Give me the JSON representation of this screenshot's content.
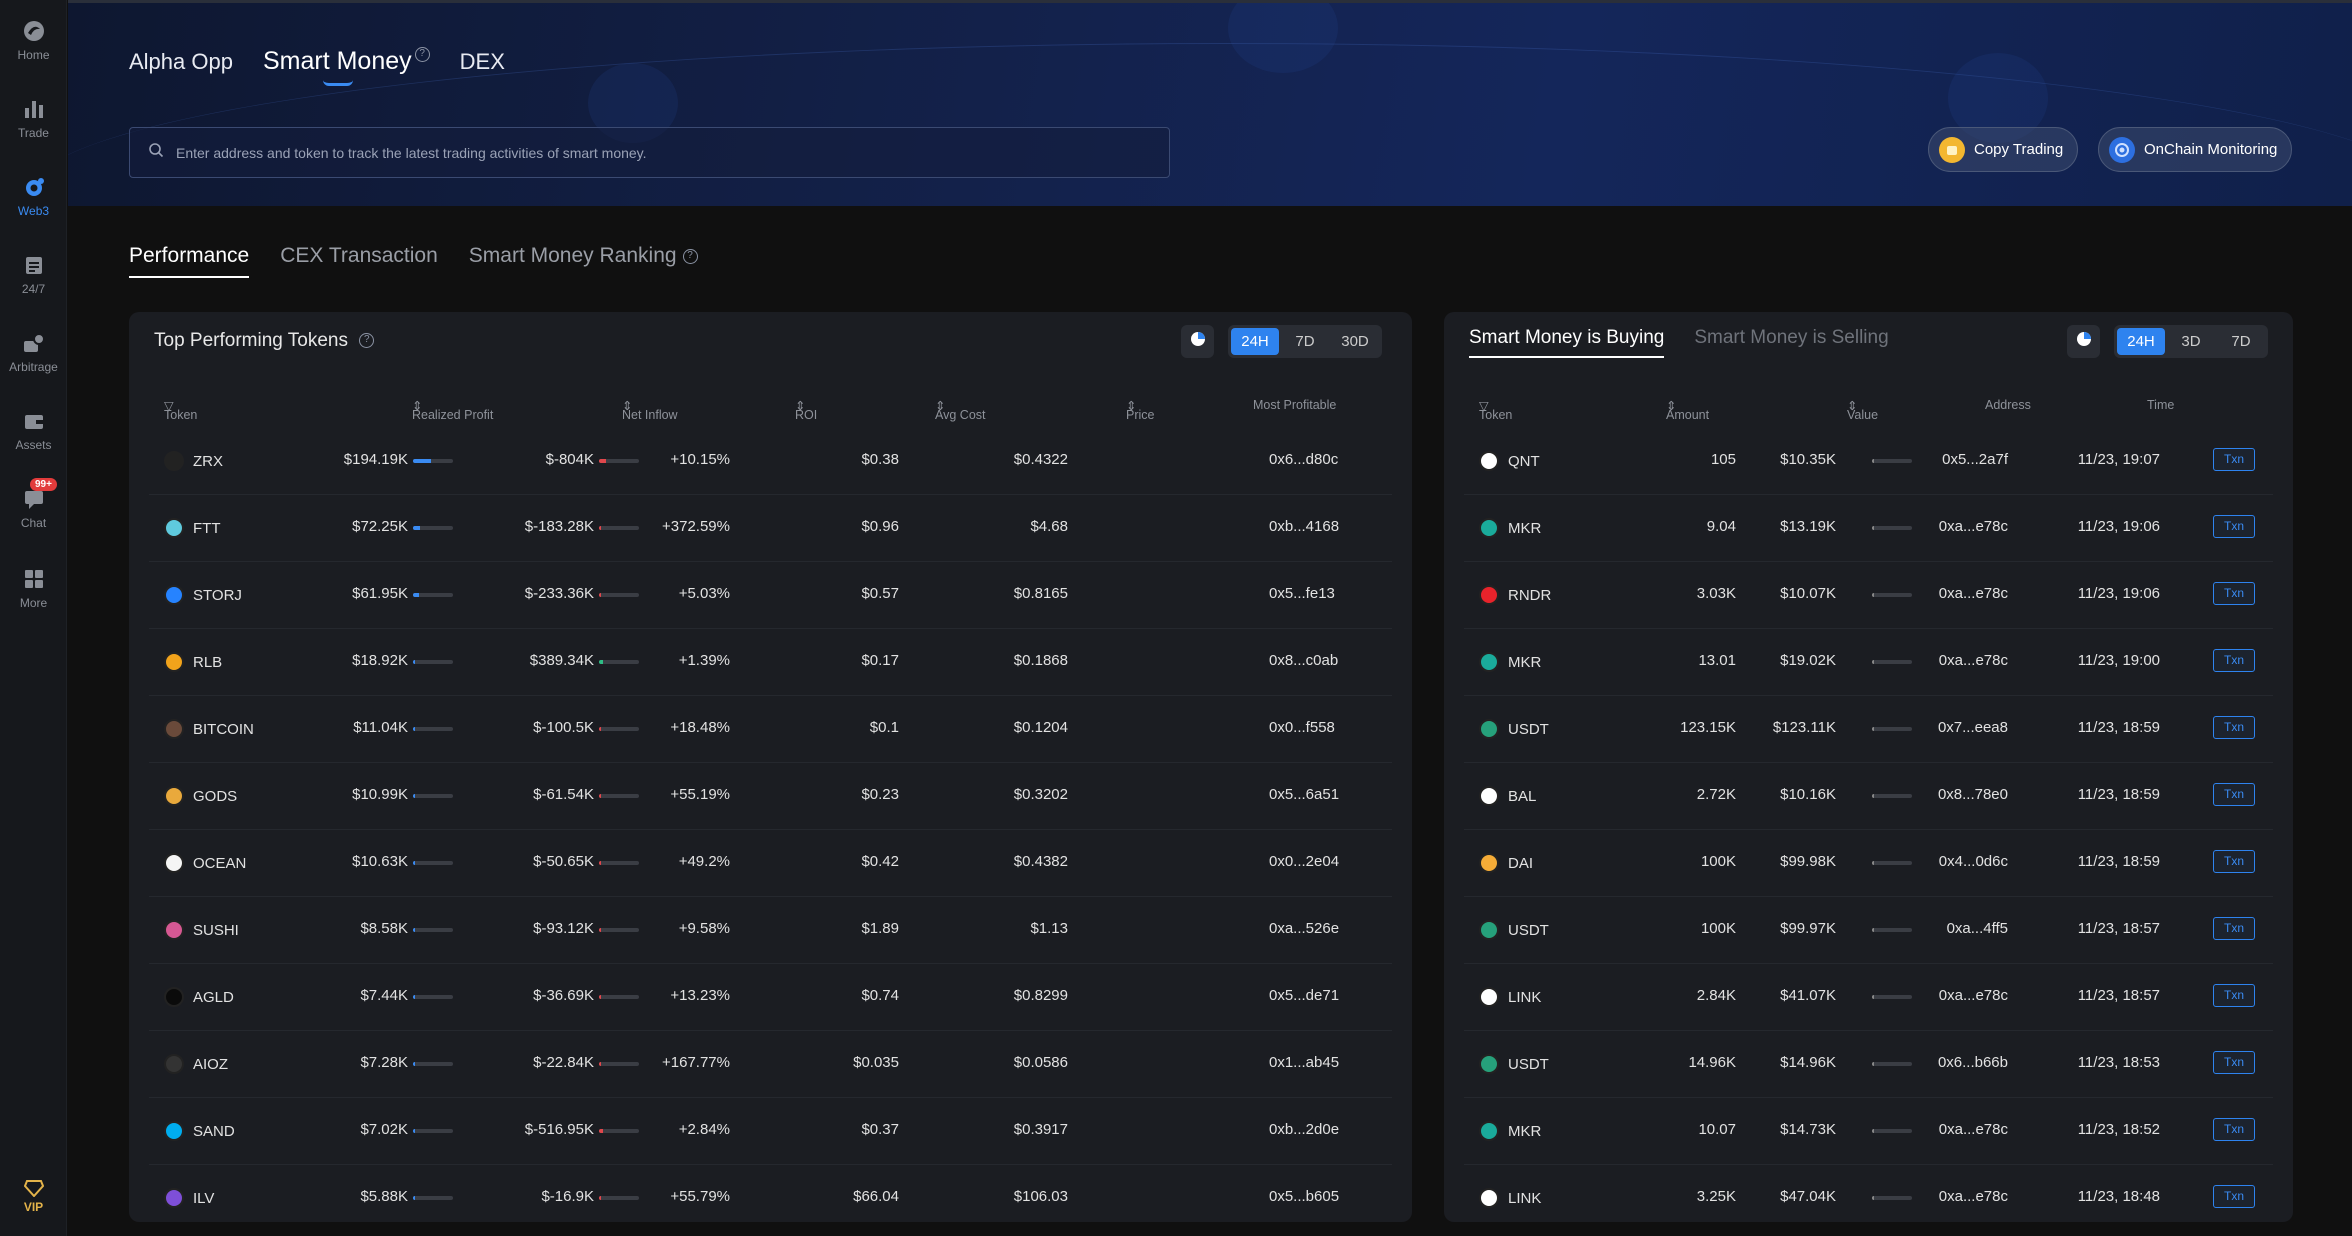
{
  "sidebar": {
    "items": [
      {
        "label": "Home",
        "icon": "home-icon",
        "active": false
      },
      {
        "label": "Trade",
        "icon": "trade-icon",
        "active": false
      },
      {
        "label": "Web3",
        "icon": "web3-icon",
        "active": true
      },
      {
        "label": "24/7",
        "icon": "calendar-icon",
        "active": false
      },
      {
        "label": "Arbitrage",
        "icon": "arbitrage-icon",
        "active": false
      },
      {
        "label": "Assets",
        "icon": "wallet-icon",
        "active": false
      },
      {
        "label": "Chat",
        "icon": "chat-icon",
        "active": false,
        "badge": "99+"
      },
      {
        "label": "More",
        "icon": "grid-icon",
        "active": false
      }
    ],
    "vip_label": "VIP"
  },
  "header": {
    "tabs": [
      {
        "label": "Alpha Opp",
        "active": false
      },
      {
        "label": "Smart Money",
        "active": true
      },
      {
        "label": "DEX",
        "active": false
      }
    ],
    "search_placeholder": "Enter address and token to track the latest trading activities of smart money.",
    "copy_trading_label": "Copy Trading",
    "onchain_monitoring_label": "OnChain Monitoring"
  },
  "section_tabs": [
    {
      "label": "Performance",
      "active": true
    },
    {
      "label": "CEX Transaction",
      "active": false
    },
    {
      "label": "Smart Money Ranking",
      "active": false
    }
  ],
  "left_panel": {
    "title": "Top Performing Tokens",
    "periods": [
      "24H",
      "7D",
      "30D"
    ],
    "active_period": "24H",
    "columns": {
      "token": "Token",
      "realized_profit": "Realized Profit",
      "net_inflow": "Net Inflow",
      "roi": "ROI",
      "avg_cost": "Avg Cost",
      "price": "Price",
      "most_profitable": "Most Profitable"
    },
    "rows": [
      {
        "token": "ZRX",
        "realized_profit": "$194.19K",
        "profit_level": 0.45,
        "net_inflow": "$-804K",
        "inflow_level": 0.06,
        "roi": "+10.15%",
        "avg_cost": "$0.38",
        "price": "$0.4322",
        "most_profitable": "0x6...d80c",
        "icon_color": "#222222"
      },
      {
        "token": "FTT",
        "realized_profit": "$72.25K",
        "profit_level": 0.17,
        "net_inflow": "$-183.28K",
        "inflow_level": 0.02,
        "roi": "+372.59%",
        "avg_cost": "$0.96",
        "price": "$4.68",
        "most_profitable": "0xb...4168",
        "icon_color": "#5fcade"
      },
      {
        "token": "STORJ",
        "realized_profit": "$61.95K",
        "profit_level": 0.15,
        "net_inflow": "$-233.36K",
        "inflow_level": 0.02,
        "roi": "+5.03%",
        "avg_cost": "$0.57",
        "price": "$0.8165",
        "most_profitable": "0x5...fe13",
        "icon_color": "#2683ff"
      },
      {
        "token": "RLB",
        "realized_profit": "$18.92K",
        "profit_level": 0.05,
        "net_inflow": "$389.34K",
        "inflow_level": 0.03,
        "roi": "+1.39%",
        "avg_cost": "$0.17",
        "price": "$0.1868",
        "most_profitable": "0x8...c0ab",
        "icon_color": "#f2a31b"
      },
      {
        "token": "BITCOIN",
        "realized_profit": "$11.04K",
        "profit_level": 0.03,
        "net_inflow": "$-100.5K",
        "inflow_level": 0.02,
        "roi": "+18.48%",
        "avg_cost": "$0.1",
        "price": "$0.1204",
        "most_profitable": "0x0...f558",
        "icon_color": "#6a4a3a"
      },
      {
        "token": "GODS",
        "realized_profit": "$10.99K",
        "profit_level": 0.03,
        "net_inflow": "$-61.54K",
        "inflow_level": 0.02,
        "roi": "+55.19%",
        "avg_cost": "$0.23",
        "price": "$0.3202",
        "most_profitable": "0x5...6a51",
        "icon_color": "#e9a93c"
      },
      {
        "token": "OCEAN",
        "realized_profit": "$10.63K",
        "profit_level": 0.03,
        "net_inflow": "$-50.65K",
        "inflow_level": 0.02,
        "roi": "+49.2%",
        "avg_cost": "$0.42",
        "price": "$0.4382",
        "most_profitable": "0x0...2e04",
        "icon_color": "#f5f5f5"
      },
      {
        "token": "SUSHI",
        "realized_profit": "$8.58K",
        "profit_level": 0.03,
        "net_inflow": "$-93.12K",
        "inflow_level": 0.02,
        "roi": "+9.58%",
        "avg_cost": "$1.89",
        "price": "$1.13",
        "most_profitable": "0xa...526e",
        "icon_color": "#d65892"
      },
      {
        "token": "AGLD",
        "realized_profit": "$7.44K",
        "profit_level": 0.02,
        "net_inflow": "$-36.69K",
        "inflow_level": 0.02,
        "roi": "+13.23%",
        "avg_cost": "$0.74",
        "price": "$0.8299",
        "most_profitable": "0x5...de71",
        "icon_color": "#0b0b0b"
      },
      {
        "token": "AIOZ",
        "realized_profit": "$7.28K",
        "profit_level": 0.02,
        "net_inflow": "$-22.84K",
        "inflow_level": 0.02,
        "roi": "+167.77%",
        "avg_cost": "$0.035",
        "price": "$0.0586",
        "most_profitable": "0x1...ab45",
        "icon_color": "#333333"
      },
      {
        "token": "SAND",
        "realized_profit": "$7.02K",
        "profit_level": 0.02,
        "net_inflow": "$-516.95K",
        "inflow_level": 0.03,
        "roi": "+2.84%",
        "avg_cost": "$0.37",
        "price": "$0.3917",
        "most_profitable": "0xb...2d0e",
        "icon_color": "#00adef"
      },
      {
        "token": "ILV",
        "realized_profit": "$5.88K",
        "profit_level": 0.02,
        "net_inflow": "$-16.9K",
        "inflow_level": 0.02,
        "roi": "+55.79%",
        "avg_cost": "$66.04",
        "price": "$106.03",
        "most_profitable": "0x5...b605",
        "icon_color": "#7e4fd8"
      }
    ]
  },
  "right_panel": {
    "tabs": [
      {
        "label": "Smart Money is Buying",
        "active": true
      },
      {
        "label": "Smart Money is Selling",
        "active": false
      }
    ],
    "periods": [
      "24H",
      "3D",
      "7D"
    ],
    "active_period": "24H",
    "columns": {
      "token": "Token",
      "amount": "Amount",
      "value": "Value",
      "address": "Address",
      "time": "Time"
    },
    "txn_label": "Txn",
    "rows": [
      {
        "token": "QNT",
        "amount": "105",
        "value": "$10.35K",
        "address": "0x5...2a7f",
        "time": "11/23, 19:07",
        "icon_color": "#ffffff"
      },
      {
        "token": "MKR",
        "amount": "9.04",
        "value": "$13.19K",
        "address": "0xa...e78c",
        "time": "11/23, 19:06",
        "icon_color": "#1aab9b"
      },
      {
        "token": "RNDR",
        "amount": "3.03K",
        "value": "$10.07K",
        "address": "0xa...e78c",
        "time": "11/23, 19:06",
        "icon_color": "#e8232b"
      },
      {
        "token": "MKR",
        "amount": "13.01",
        "value": "$19.02K",
        "address": "0xa...e78c",
        "time": "11/23, 19:00",
        "icon_color": "#1aab9b"
      },
      {
        "token": "USDT",
        "amount": "123.15K",
        "value": "$123.11K",
        "address": "0x7...eea8",
        "time": "11/23, 18:59",
        "icon_color": "#26a17b"
      },
      {
        "token": "BAL",
        "amount": "2.72K",
        "value": "$10.16K",
        "address": "0x8...78e0",
        "time": "11/23, 18:59",
        "icon_color": "#ffffff"
      },
      {
        "token": "DAI",
        "amount": "100K",
        "value": "$99.98K",
        "address": "0x4...0d6c",
        "time": "11/23, 18:59",
        "icon_color": "#f5ac37"
      },
      {
        "token": "USDT",
        "amount": "100K",
        "value": "$99.97K",
        "address": "0xa...4ff5",
        "time": "11/23, 18:57",
        "icon_color": "#26a17b"
      },
      {
        "token": "LINK",
        "amount": "2.84K",
        "value": "$41.07K",
        "address": "0xa...e78c",
        "time": "11/23, 18:57",
        "icon_color": "#ffffff"
      },
      {
        "token": "USDT",
        "amount": "14.96K",
        "value": "$14.96K",
        "address": "0x6...b66b",
        "time": "11/23, 18:53",
        "icon_color": "#26a17b"
      },
      {
        "token": "MKR",
        "amount": "10.07",
        "value": "$14.73K",
        "address": "0xa...e78c",
        "time": "11/23, 18:52",
        "icon_color": "#1aab9b"
      },
      {
        "token": "LINK",
        "amount": "3.25K",
        "value": "$47.04K",
        "address": "0xa...e78c",
        "time": "11/23, 18:48",
        "icon_color": "#ffffff"
      }
    ]
  },
  "colors": {
    "accent": "#2e83ef",
    "profit_bar": "#3a8bf2",
    "inflow_positive": "#2ebd85",
    "inflow_negative": "#e0474c",
    "background": "#101010",
    "panel": "#1b1d22"
  }
}
